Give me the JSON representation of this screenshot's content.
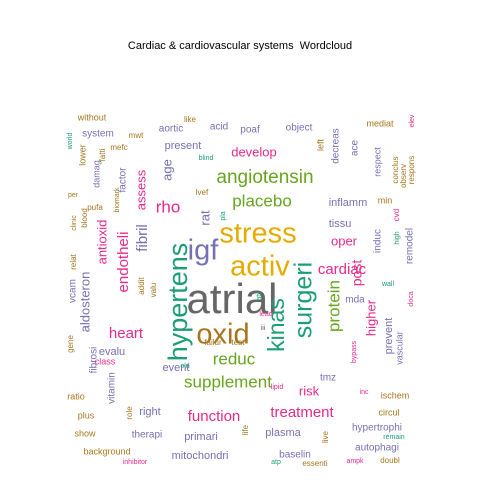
{
  "chart_data": {
    "type": "wordcloud",
    "title": "Cardiac & cardiovascular systems  Wordcloud",
    "palette": {
      "grey": "#666666",
      "orange": "#d95f02",
      "yellow": "#e6ab02",
      "green": "#66a61e",
      "teal": "#1b9e77",
      "purple": "#7570b3",
      "magenta": "#e7298a",
      "brown": "#a6761d"
    },
    "words": [
      {
        "text": "atrial",
        "weight": 44,
        "color": "grey"
      },
      {
        "text": "oxid",
        "weight": 30,
        "color": "brown"
      },
      {
        "text": "activ",
        "weight": 30,
        "color": "yellow"
      },
      {
        "text": "stress",
        "weight": 30,
        "color": "yellow"
      },
      {
        "text": "igf",
        "weight": 30,
        "color": "purple"
      },
      {
        "text": "hypertens",
        "weight": 28,
        "color": "teal"
      },
      {
        "text": "surgeri",
        "weight": 26,
        "color": "teal"
      },
      {
        "text": "kinas",
        "weight": 24,
        "color": "teal"
      },
      {
        "text": "angiotensin",
        "weight": 20,
        "color": "green"
      },
      {
        "text": "placebo",
        "weight": 18,
        "color": "green"
      },
      {
        "text": "rho",
        "weight": 18,
        "color": "magenta"
      },
      {
        "text": "supplement",
        "weight": 18,
        "color": "green"
      },
      {
        "text": "reduc",
        "weight": 18,
        "color": "green"
      },
      {
        "text": "protein",
        "weight": 18,
        "color": "green"
      },
      {
        "text": "fibril",
        "weight": 16,
        "color": "purple"
      },
      {
        "text": "endotheli",
        "weight": 16,
        "color": "magenta"
      },
      {
        "text": "heart",
        "weight": 16,
        "color": "magenta"
      },
      {
        "text": "cardiac",
        "weight": 16,
        "color": "magenta"
      },
      {
        "text": "function",
        "weight": 16,
        "color": "magenta"
      },
      {
        "text": "treatment",
        "weight": 16,
        "color": "magenta"
      },
      {
        "text": "post",
        "weight": 15,
        "color": "magenta"
      },
      {
        "text": "higher",
        "weight": 14,
        "color": "magenta"
      },
      {
        "text": "antioxid",
        "weight": 14,
        "color": "magenta"
      },
      {
        "text": "aldosteron",
        "weight": 14,
        "color": "purple"
      },
      {
        "text": "develop",
        "weight": 14,
        "color": "magenta"
      },
      {
        "text": "assess",
        "weight": 14,
        "color": "magenta"
      },
      {
        "text": "oper",
        "weight": 14,
        "color": "magenta"
      },
      {
        "text": "risk",
        "weight": 14,
        "color": "magenta"
      },
      {
        "text": "age",
        "weight": 14,
        "color": "purple"
      },
      {
        "text": "rat",
        "weight": 14,
        "color": "purple"
      },
      {
        "text": "inflamm",
        "weight": 12,
        "color": "purple"
      },
      {
        "text": "tissu",
        "weight": 12,
        "color": "purple"
      },
      {
        "text": "present",
        "weight": 12,
        "color": "purple"
      },
      {
        "text": "event",
        "weight": 12,
        "color": "purple"
      },
      {
        "text": "evalu",
        "weight": 12,
        "color": "purple"
      },
      {
        "text": "primari",
        "weight": 12,
        "color": "purple"
      },
      {
        "text": "plasma",
        "weight": 12,
        "color": "purple"
      },
      {
        "text": "mitochondri",
        "weight": 12,
        "color": "purple"
      },
      {
        "text": "right",
        "weight": 12,
        "color": "purple"
      },
      {
        "text": "prevent",
        "weight": 12,
        "color": "purple"
      },
      {
        "text": "poaf",
        "weight": 11,
        "color": "purple"
      },
      {
        "text": "factor",
        "weight": 11,
        "color": "purple"
      },
      {
        "text": "decreas",
        "weight": 11,
        "color": "purple"
      },
      {
        "text": "mda",
        "weight": 11,
        "color": "purple"
      },
      {
        "text": "hypertrophi",
        "weight": 11,
        "color": "purple"
      },
      {
        "text": "autophagi",
        "weight": 11,
        "color": "purple"
      },
      {
        "text": "baselin",
        "weight": 11,
        "color": "purple"
      },
      {
        "text": "therapi",
        "weight": 11,
        "color": "purple"
      },
      {
        "text": "remodel",
        "weight": 10,
        "color": "purple"
      },
      {
        "text": "induc",
        "weight": 10,
        "color": "purple"
      },
      {
        "text": "acid",
        "weight": 10,
        "color": "purple"
      },
      {
        "text": "aortic",
        "weight": 10,
        "color": "purple"
      },
      {
        "text": "object",
        "weight": 10,
        "color": "purple"
      },
      {
        "text": "system",
        "weight": 10,
        "color": "purple"
      },
      {
        "text": "vitamin",
        "weight": 10,
        "color": "purple"
      },
      {
        "text": "fibrosi",
        "weight": 10,
        "color": "purple"
      },
      {
        "text": "vcam",
        "weight": 10,
        "color": "purple"
      },
      {
        "text": "tmz",
        "weight": 10,
        "color": "purple"
      },
      {
        "text": "ace",
        "weight": 10,
        "color": "purple"
      },
      {
        "text": "respect",
        "weight": 9,
        "color": "purple"
      },
      {
        "text": "vascular",
        "weight": 9,
        "color": "purple"
      },
      {
        "text": "damag",
        "weight": 9,
        "color": "purple"
      },
      {
        "text": "mediat",
        "weight": 9,
        "color": "brown"
      },
      {
        "text": "min",
        "weight": 9,
        "color": "brown"
      },
      {
        "text": "ischem",
        "weight": 9,
        "color": "brown"
      },
      {
        "text": "circul",
        "weight": 9,
        "color": "brown"
      },
      {
        "text": "background",
        "weight": 9,
        "color": "brown"
      },
      {
        "text": "show",
        "weight": 9,
        "color": "brown"
      },
      {
        "text": "plus",
        "weight": 9,
        "color": "brown"
      },
      {
        "text": "ratio",
        "weight": 9,
        "color": "brown"
      },
      {
        "text": "without",
        "weight": 9,
        "color": "brown"
      },
      {
        "text": "left",
        "weight": 9,
        "color": "brown"
      },
      {
        "text": "lower",
        "weight": 9,
        "color": "brown"
      },
      {
        "text": "role",
        "weight": 8,
        "color": "brown"
      },
      {
        "text": "lvef",
        "weight": 8,
        "color": "brown"
      },
      {
        "text": "like",
        "weight": 8,
        "color": "brown"
      },
      {
        "text": "conclus",
        "weight": 8,
        "color": "brown"
      },
      {
        "text": "respons",
        "weight": 8,
        "color": "brown"
      },
      {
        "text": "observ",
        "weight": 8,
        "color": "brown"
      },
      {
        "text": "doubl",
        "weight": 8,
        "color": "brown"
      },
      {
        "text": "essenti",
        "weight": 8,
        "color": "brown"
      },
      {
        "text": "life",
        "weight": 8,
        "color": "brown"
      },
      {
        "text": "live",
        "weight": 8,
        "color": "brown"
      },
      {
        "text": "test",
        "weight": 8,
        "color": "brown"
      },
      {
        "text": "failur",
        "weight": 8,
        "color": "brown"
      },
      {
        "text": "relat",
        "weight": 8,
        "color": "brown"
      },
      {
        "text": "valu",
        "weight": 8,
        "color": "brown"
      },
      {
        "text": "addit",
        "weight": 8,
        "color": "brown"
      },
      {
        "text": "fatti",
        "weight": 8,
        "color": "brown"
      },
      {
        "text": "mefc",
        "weight": 8,
        "color": "brown"
      },
      {
        "text": "mwt",
        "weight": 8,
        "color": "brown"
      },
      {
        "text": "pufa",
        "weight": 8,
        "color": "brown"
      },
      {
        "text": "blood",
        "weight": 8,
        "color": "brown"
      },
      {
        "text": "biomark",
        "weight": 7,
        "color": "brown"
      },
      {
        "text": "clinic",
        "weight": 7,
        "color": "brown"
      },
      {
        "text": "per",
        "weight": 7,
        "color": "brown"
      },
      {
        "text": "lipid",
        "weight": 7,
        "color": "magenta"
      },
      {
        "text": "inc",
        "weight": 7,
        "color": "magenta"
      },
      {
        "text": "bypass",
        "weight": 7,
        "color": "magenta"
      },
      {
        "text": "doca",
        "weight": 7,
        "color": "magenta"
      },
      {
        "text": "elev",
        "weight": 7,
        "color": "magenta"
      },
      {
        "text": "class",
        "weight": 9,
        "color": "magenta"
      },
      {
        "text": "inhibitor",
        "weight": 7,
        "color": "magenta"
      },
      {
        "text": "ampk",
        "weight": 7,
        "color": "magenta"
      },
      {
        "text": "lead",
        "weight": 7,
        "color": "magenta"
      },
      {
        "text": "gene",
        "weight": 8,
        "color": "brown"
      },
      {
        "text": "cvd",
        "weight": 8,
        "color": "magenta"
      },
      {
        "text": "world",
        "weight": 7,
        "color": "teal"
      },
      {
        "text": "blind",
        "weight": 7,
        "color": "teal"
      },
      {
        "text": "wall",
        "weight": 7,
        "color": "teal"
      },
      {
        "text": "atp",
        "weight": 7,
        "color": "teal"
      },
      {
        "text": "remain",
        "weight": 7,
        "color": "teal"
      },
      {
        "text": "high",
        "weight": 7,
        "color": "teal"
      },
      {
        "text": "old",
        "weight": 7,
        "color": "teal"
      },
      {
        "text": "atv",
        "weight": 7,
        "color": "teal"
      },
      {
        "text": "pla",
        "weight": 7,
        "color": "teal"
      },
      {
        "text": "iii",
        "weight": 7,
        "color": "grey"
      }
    ]
  }
}
